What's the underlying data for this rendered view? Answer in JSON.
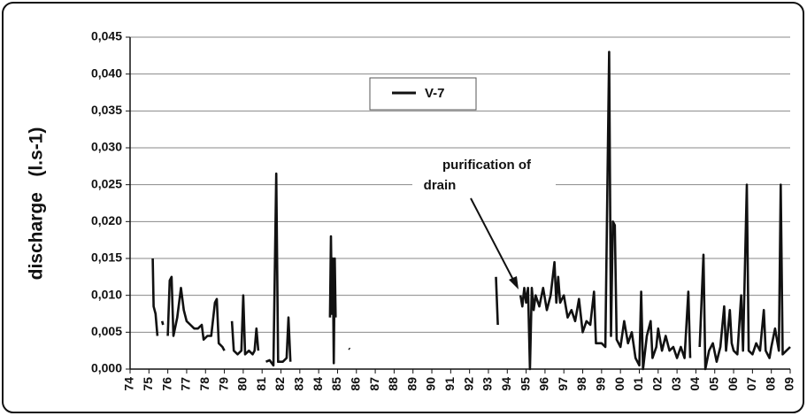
{
  "chart_data": {
    "type": "line",
    "y_label": "discharge   (l.s-1)",
    "annotation": [
      "purification of",
      "drain"
    ],
    "legend": "top-center",
    "grid": true,
    "xlim": [
      1974,
      2009
    ],
    "ylim": [
      0,
      0.045
    ],
    "yticks": [
      {
        "value": 0,
        "label": "0,000"
      },
      {
        "value": 0.005,
        "label": "0,005"
      },
      {
        "value": 0.01,
        "label": "0,010"
      },
      {
        "value": 0.015,
        "label": "0,015"
      },
      {
        "value": 0.02,
        "label": "0,020"
      },
      {
        "value": 0.025,
        "label": "0,025"
      },
      {
        "value": 0.03,
        "label": "0,030"
      },
      {
        "value": 0.035,
        "label": "0,035"
      },
      {
        "value": 0.04,
        "label": "0,040"
      },
      {
        "value": 0.045,
        "label": "0,045"
      }
    ],
    "xticks": [
      {
        "value": 1974,
        "label": "74"
      },
      {
        "value": 1975,
        "label": "75"
      },
      {
        "value": 1976,
        "label": "76"
      },
      {
        "value": 1977,
        "label": "77"
      },
      {
        "value": 1978,
        "label": "78"
      },
      {
        "value": 1979,
        "label": "79"
      },
      {
        "value": 1980,
        "label": "80"
      },
      {
        "value": 1981,
        "label": "81"
      },
      {
        "value": 1982,
        "label": "82"
      },
      {
        "value": 1983,
        "label": "83"
      },
      {
        "value": 1984,
        "label": "84"
      },
      {
        "value": 1985,
        "label": "85"
      },
      {
        "value": 1986,
        "label": "86"
      },
      {
        "value": 1987,
        "label": "87"
      },
      {
        "value": 1988,
        "label": "88"
      },
      {
        "value": 1989,
        "label": "89"
      },
      {
        "value": 1990,
        "label": "90"
      },
      {
        "value": 1991,
        "label": "91"
      },
      {
        "value": 1992,
        "label": "92"
      },
      {
        "value": 1993,
        "label": "93"
      },
      {
        "value": 1994,
        "label": "94"
      },
      {
        "value": 1995,
        "label": "95"
      },
      {
        "value": 1996,
        "label": "96"
      },
      {
        "value": 1997,
        "label": "97"
      },
      {
        "value": 1998,
        "label": "98"
      },
      {
        "value": 1999,
        "label": "99"
      },
      {
        "value": 2000,
        "label": "00"
      },
      {
        "value": 2001,
        "label": "01"
      },
      {
        "value": 2002,
        "label": "02"
      },
      {
        "value": 2003,
        "label": "03"
      },
      {
        "value": 2004,
        "label": "04"
      },
      {
        "value": 2005,
        "label": "05"
      },
      {
        "value": 2006,
        "label": "06"
      },
      {
        "value": 2007,
        "label": "07"
      },
      {
        "value": 2008,
        "label": "08"
      },
      {
        "value": 2009,
        "label": "09"
      }
    ],
    "x": [
      1975.2,
      1975.25,
      1975.35,
      1975.45,
      1975.55,
      1975.7,
      1975.75,
      1975.9,
      1976.0,
      1976.1,
      1976.2,
      1976.3,
      1976.5,
      1976.7,
      1976.85,
      1977.0,
      1977.2,
      1977.4,
      1977.6,
      1977.8,
      1977.9,
      1978.1,
      1978.3,
      1978.5,
      1978.6,
      1978.7,
      1978.9,
      1979.0,
      1979.2,
      1979.4,
      1979.5,
      1979.7,
      1979.9,
      1980.0,
      1980.1,
      1980.3,
      1980.5,
      1980.6,
      1980.7,
      1980.8,
      1981.0,
      1981.2,
      1981.4,
      1981.6,
      1981.75,
      1981.85,
      1982.1,
      1982.3,
      1982.4,
      1982.5,
      1983.5,
      1984.6,
      1984.65,
      1984.7,
      1984.75,
      1984.8,
      1984.85,
      1984.9,
      1985.3,
      1985.6,
      1985.65,
      1990,
      1993.4,
      1993.5,
      1994.1,
      1994.7,
      1994.8,
      1994.9,
      1995.0,
      1995.1,
      1995.2,
      1995.3,
      1995.4,
      1995.5,
      1995.7,
      1995.9,
      1996.1,
      1996.3,
      1996.5,
      1996.6,
      1996.7,
      1996.8,
      1997.0,
      1997.2,
      1997.4,
      1997.6,
      1997.8,
      1998.0,
      1998.2,
      1998.4,
      1998.6,
      1998.7,
      1999.0,
      1999.2,
      1999.4,
      1999.5,
      1999.6,
      1999.7,
      1999.8,
      2000.0,
      2000.2,
      2000.4,
      2000.6,
      2000.8,
      2001.0,
      2001.1,
      2001.2,
      2001.4,
      2001.6,
      2001.7,
      2001.9,
      2002.0,
      2002.2,
      2002.4,
      2002.6,
      2002.8,
      2003.0,
      2003.2,
      2003.4,
      2003.6,
      2003.7,
      2004.0,
      2004.2,
      2004.4,
      2004.5,
      2004.7,
      2004.9,
      2005.1,
      2005.3,
      2005.5,
      2005.6,
      2005.8,
      2005.9,
      2006.0,
      2006.2,
      2006.4,
      2006.5,
      2006.7,
      2006.8,
      2007.0,
      2007.2,
      2007.4,
      2007.6,
      2007.7,
      2007.9,
      2008.0,
      2008.2,
      2008.4,
      2008.5,
      2008.6,
      2008.8,
      2009.0
    ],
    "series": [
      {
        "name": "V-7",
        "color": "#111111",
        "values": [
          0.015,
          0.0085,
          0.0075,
          0.0045,
          null,
          0.0065,
          0.006,
          null,
          0.0045,
          0.012,
          0.0125,
          0.0045,
          0.007,
          0.011,
          0.008,
          0.0065,
          0.006,
          0.0055,
          0.0055,
          0.006,
          0.004,
          0.0045,
          0.0045,
          0.009,
          0.0095,
          0.0035,
          0.003,
          0.0025,
          null,
          0.0065,
          0.0025,
          0.002,
          0.0025,
          0.01,
          0.002,
          0.0025,
          0.002,
          0.0025,
          0.0055,
          0.0025,
          null,
          0.001,
          0.0012,
          0.0005,
          0.0265,
          0.001,
          0.001,
          0.0015,
          0.007,
          0.001,
          null,
          0.007,
          0.018,
          0.0075,
          0.015,
          0.0008,
          0.015,
          0.007,
          null,
          0.0028,
          0.0027,
          null,
          0.0125,
          0.006,
          null,
          0.01,
          0.0085,
          0.011,
          0.009,
          0.011,
          0,
          0.011,
          0.008,
          0.01,
          0.0085,
          0.011,
          0.008,
          0.01,
          0.0145,
          0.009,
          0.0125,
          0.009,
          0.01,
          0.007,
          0.008,
          0.0065,
          0.0095,
          0.005,
          0.0065,
          0.006,
          0.0105,
          0.0035,
          0.0035,
          0.003,
          0.043,
          0.0045,
          0.02,
          0.0195,
          0.004,
          0.003,
          0.0065,
          0.0035,
          0.005,
          0.0015,
          0.0005,
          0.0105,
          0,
          0.0045,
          0.0065,
          0.0015,
          0.003,
          0.0055,
          0.0025,
          0.0045,
          0.0025,
          0.003,
          0.0015,
          0.003,
          0.0015,
          0.0105,
          0.0015,
          null,
          0.003,
          0.0155,
          0,
          0.0025,
          0.0035,
          0.001,
          0.003,
          0.0085,
          0.0025,
          0.008,
          0.0035,
          0.0025,
          0.002,
          0.01,
          0.0025,
          0.025,
          0.0025,
          0.002,
          0.0035,
          0.0025,
          0.008,
          0.0025,
          0.0015,
          0.003,
          0.0055,
          0.0025,
          0.025,
          0.002,
          0.0025,
          0.003
        ]
      }
    ]
  }
}
